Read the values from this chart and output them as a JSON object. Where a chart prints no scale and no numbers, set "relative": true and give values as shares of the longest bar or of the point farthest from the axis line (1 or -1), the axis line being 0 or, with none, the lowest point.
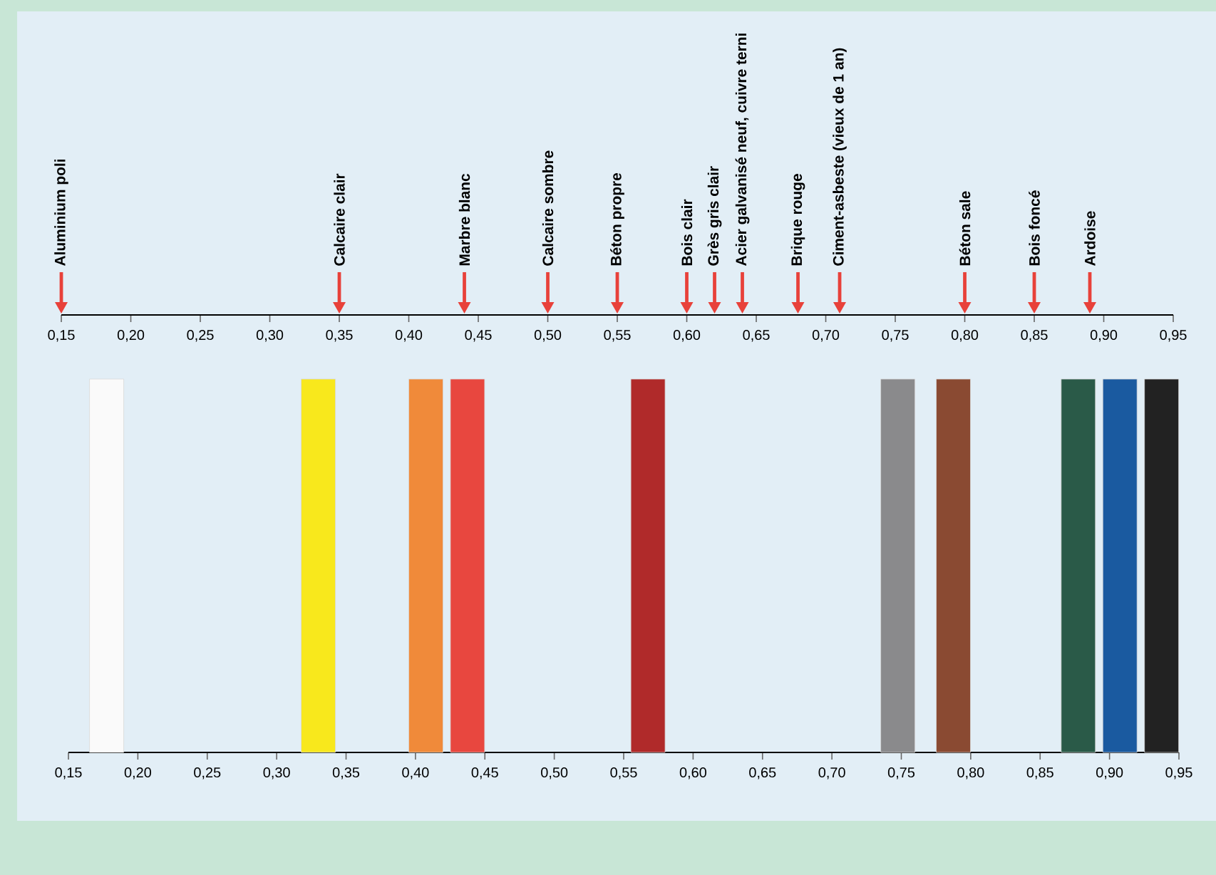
{
  "chart_data": {
    "type": "bar",
    "relative": true,
    "xlim": [
      0.15,
      0.95
    ],
    "xticks": [
      {
        "value": 0.15,
        "label": "0,15"
      },
      {
        "value": 0.2,
        "label": "0,20"
      },
      {
        "value": 0.25,
        "label": "0,25"
      },
      {
        "value": 0.3,
        "label": "0,30"
      },
      {
        "value": 0.35,
        "label": "0,35"
      },
      {
        "value": 0.4,
        "label": "0,40"
      },
      {
        "value": 0.45,
        "label": "0,45"
      },
      {
        "value": 0.5,
        "label": "0,50"
      },
      {
        "value": 0.55,
        "label": "0,55"
      },
      {
        "value": 0.6,
        "label": "0,60"
      },
      {
        "value": 0.65,
        "label": "0,65"
      },
      {
        "value": 0.7,
        "label": "0,70"
      },
      {
        "value": 0.75,
        "label": "0,75"
      },
      {
        "value": 0.8,
        "label": "0,80"
      },
      {
        "value": 0.85,
        "label": "0,85"
      },
      {
        "value": 0.9,
        "label": "0,90"
      },
      {
        "value": 0.95,
        "label": "0,95"
      }
    ],
    "x2lim": [
      0.15,
      0.95
    ],
    "x2ticks": [
      {
        "value": 0.15,
        "label": "0,15"
      },
      {
        "value": 0.2,
        "label": "0,20"
      },
      {
        "value": 0.25,
        "label": "0,25"
      },
      {
        "value": 0.3,
        "label": "0,30"
      },
      {
        "value": 0.35,
        "label": "0,35"
      },
      {
        "value": 0.4,
        "label": "0,40"
      },
      {
        "value": 0.45,
        "label": "0,45"
      },
      {
        "value": 0.5,
        "label": "0,50"
      },
      {
        "value": 0.55,
        "label": "0,55"
      },
      {
        "value": 0.6,
        "label": "0,60"
      },
      {
        "value": 0.65,
        "label": "0,65"
      },
      {
        "value": 0.7,
        "label": "0,70"
      },
      {
        "value": 0.75,
        "label": "0,75"
      },
      {
        "value": 0.8,
        "label": "0,80"
      },
      {
        "value": 0.85,
        "label": "0,85"
      },
      {
        "value": 0.9,
        "label": "0,90"
      },
      {
        "value": 0.95,
        "label": "0,95"
      }
    ],
    "x": [
      0.1775,
      0.33,
      0.4075,
      0.4375,
      0.5675,
      0.7475,
      0.7875,
      0.8775,
      0.9075,
      0.9375
    ],
    "values": [
      1,
      1,
      1,
      1,
      1,
      1,
      1,
      1,
      1,
      1
    ],
    "colors": [
      "#fafafa",
      "#f8e81c",
      "#f08a3a",
      "#e8473f",
      "#b02a2a",
      "#8a8a8c",
      "#8a4a32",
      "#2a5a48",
      "#1a5aa0",
      "#222222"
    ],
    "ref_lines": [
      {
        "axis": "x2",
        "value": 0.15,
        "label": "Aluminium poli",
        "color": "#e8413a"
      },
      {
        "axis": "x2",
        "value": 0.35,
        "label": "Calcaire clair",
        "color": "#e8413a"
      },
      {
        "axis": "x2",
        "value": 0.44,
        "label": "Marbre blanc",
        "color": "#e8413a"
      },
      {
        "axis": "x2",
        "value": 0.5,
        "label": "Calcaire sombre",
        "color": "#e8413a"
      },
      {
        "axis": "x2",
        "value": 0.55,
        "label": "Béton propre",
        "color": "#e8413a"
      },
      {
        "axis": "x2",
        "value": 0.6,
        "label": "Bois clair",
        "color": "#e8413a"
      },
      {
        "axis": "x2",
        "value": 0.62,
        "label": "Grès gris clair",
        "color": "#e8413a"
      },
      {
        "axis": "x2",
        "value": 0.64,
        "label": "Acier galvanisé neuf, cuivre terni",
        "color": "#e8413a"
      },
      {
        "axis": "x2",
        "value": 0.68,
        "label": "Brique rouge",
        "color": "#e8413a"
      },
      {
        "axis": "x2",
        "value": 0.71,
        "label": "Ciment-asbeste (vieux de 1 an)",
        "color": "#e8413a"
      },
      {
        "axis": "x2",
        "value": 0.8,
        "label": "Béton sale",
        "color": "#e8413a"
      },
      {
        "axis": "x2",
        "value": 0.85,
        "label": "Bois foncé",
        "color": "#e8413a"
      },
      {
        "axis": "x2",
        "value": 0.89,
        "label": "Ardoise",
        "color": "#e8413a"
      }
    ]
  }
}
